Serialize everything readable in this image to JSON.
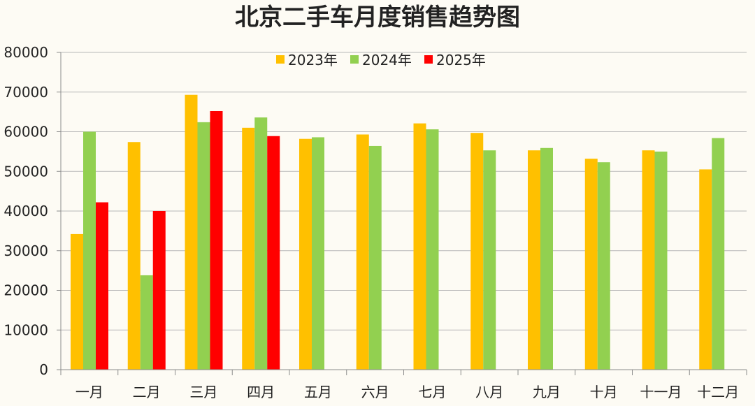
{
  "chart_data": {
    "type": "bar",
    "title": "北京二手车月度销售趋势图",
    "categories": [
      "一月",
      "二月",
      "三月",
      "四月",
      "五月",
      "六月",
      "七月",
      "八月",
      "九月",
      "十月",
      "十一月",
      "十二月"
    ],
    "series": [
      {
        "name": "2023年",
        "color": "#ffc000",
        "values": [
          34200,
          57400,
          69300,
          61000,
          58200,
          59300,
          62100,
          59700,
          55300,
          53200,
          55300,
          50500
        ]
      },
      {
        "name": "2024年",
        "color": "#92d050",
        "values": [
          60000,
          23800,
          62400,
          63600,
          58600,
          56400,
          60600,
          55300,
          55900,
          52300,
          55000,
          58400
        ]
      },
      {
        "name": "2025年",
        "color": "#ff0000",
        "values": [
          42200,
          40000,
          65200,
          58900,
          null,
          null,
          null,
          null,
          null,
          null,
          null,
          null
        ]
      }
    ],
    "ylim": [
      0,
      80000
    ],
    "yticks": [
      0,
      10000,
      20000,
      30000,
      40000,
      50000,
      60000,
      70000,
      80000
    ],
    "grid": true,
    "legend_position": "top-center",
    "xlabel": "",
    "ylabel": ""
  }
}
